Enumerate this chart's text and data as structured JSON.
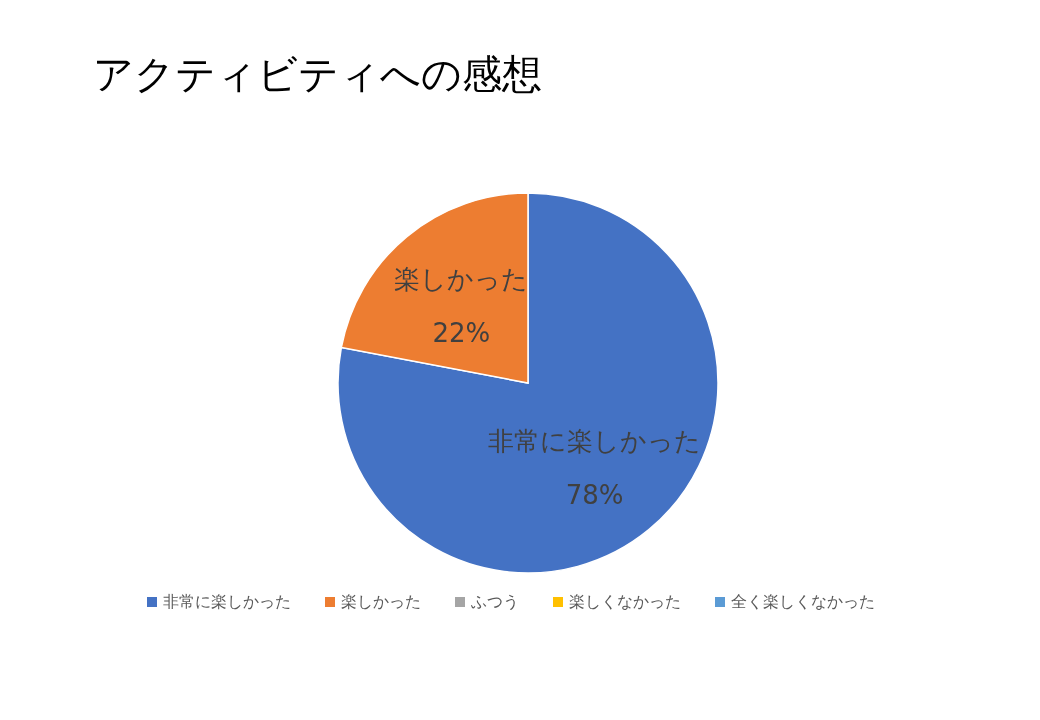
{
  "chart_data": {
    "type": "pie",
    "title": "アクティビティへの感想",
    "categories": [
      "非常に楽しかった",
      "楽しかった",
      "ふつう",
      "楽しくなかった",
      "全く楽しくなかった"
    ],
    "values": [
      78,
      22,
      0,
      0,
      0
    ],
    "colors": [
      "#4472c4",
      "#ed7d31",
      "#a5a5a5",
      "#ffc000",
      "#5b9bd5"
    ],
    "value_labels": [
      "78%",
      "22%",
      null,
      null,
      null
    ],
    "legend": "bottom"
  }
}
